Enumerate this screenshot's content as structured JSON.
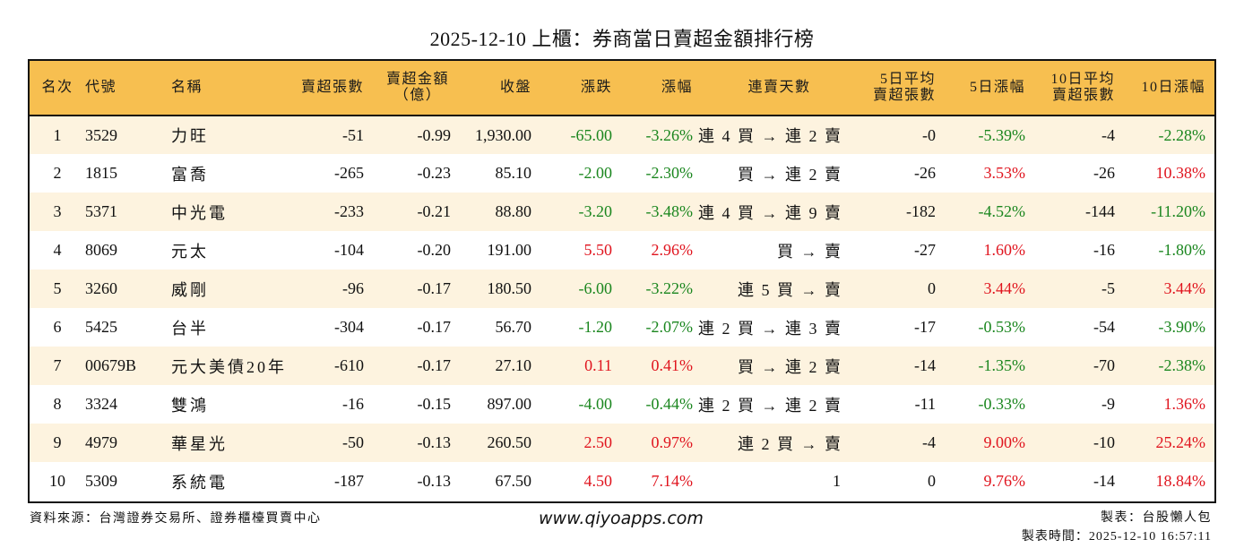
{
  "title": "2025-12-10 上櫃：券商當日賣超金額排行榜",
  "colors": {
    "header_bg": "#F7BF50",
    "row_odd_bg": "#FDF3DF",
    "row_even_bg": "#FFFFFF",
    "up": "#E0141E",
    "down": "#1A861E"
  },
  "table": {
    "headers": {
      "rank": "名次",
      "code": "代號",
      "name": "名稱",
      "sell_shares": "賣超張數",
      "sell_amount_line1": "賣超金額",
      "sell_amount_line2": "（億）",
      "close": "收盤",
      "change": "漲跌",
      "change_pct": "漲幅",
      "streak": "連賣天數",
      "avg5_line1": "5日平均",
      "avg5_line2": "賣超張數",
      "pct5": "5日漲幅",
      "avg10_line1": "10日平均",
      "avg10_line2": "賣超張數",
      "pct10": "10日漲幅"
    },
    "rows": [
      {
        "rank": "1",
        "code": "3529",
        "name": "力旺",
        "sell_shares": "-51",
        "sell_amount": "-0.99",
        "close": "1,930.00",
        "change": "-65.00",
        "change_pct": "-3.26%",
        "streak": "連 4 買 → 連 2 賣",
        "avg5": "-0",
        "pct5": "-5.39%",
        "avg10": "-4",
        "pct10": "-2.28%"
      },
      {
        "rank": "2",
        "code": "1815",
        "name": "富喬",
        "sell_shares": "-265",
        "sell_amount": "-0.23",
        "close": "85.10",
        "change": "-2.00",
        "change_pct": "-2.30%",
        "streak": "買 → 連 2 賣",
        "avg5": "-26",
        "pct5": "3.53%",
        "avg10": "-26",
        "pct10": "10.38%"
      },
      {
        "rank": "3",
        "code": "5371",
        "name": "中光電",
        "sell_shares": "-233",
        "sell_amount": "-0.21",
        "close": "88.80",
        "change": "-3.20",
        "change_pct": "-3.48%",
        "streak": "連 4 買 → 連 9 賣",
        "avg5": "-182",
        "pct5": "-4.52%",
        "avg10": "-144",
        "pct10": "-11.20%"
      },
      {
        "rank": "4",
        "code": "8069",
        "name": "元太",
        "sell_shares": "-104",
        "sell_amount": "-0.20",
        "close": "191.00",
        "change": "5.50",
        "change_pct": "2.96%",
        "streak": "買 → 賣",
        "avg5": "-27",
        "pct5": "1.60%",
        "avg10": "-16",
        "pct10": "-1.80%"
      },
      {
        "rank": "5",
        "code": "3260",
        "name": "威剛",
        "sell_shares": "-96",
        "sell_amount": "-0.17",
        "close": "180.50",
        "change": "-6.00",
        "change_pct": "-3.22%",
        "streak": "連 5 買 → 賣",
        "avg5": "0",
        "pct5": "3.44%",
        "avg10": "-5",
        "pct10": "3.44%"
      },
      {
        "rank": "6",
        "code": "5425",
        "name": "台半",
        "sell_shares": "-304",
        "sell_amount": "-0.17",
        "close": "56.70",
        "change": "-1.20",
        "change_pct": "-2.07%",
        "streak": "連 2 買 → 連 3 賣",
        "avg5": "-17",
        "pct5": "-0.53%",
        "avg10": "-54",
        "pct10": "-3.90%"
      },
      {
        "rank": "7",
        "code": "00679B",
        "name": "元大美債20年",
        "sell_shares": "-610",
        "sell_amount": "-0.17",
        "close": "27.10",
        "change": "0.11",
        "change_pct": "0.41%",
        "streak": "買 → 連 2 賣",
        "avg5": "-14",
        "pct5": "-1.35%",
        "avg10": "-70",
        "pct10": "-2.38%"
      },
      {
        "rank": "8",
        "code": "3324",
        "name": "雙鴻",
        "sell_shares": "-16",
        "sell_amount": "-0.15",
        "close": "897.00",
        "change": "-4.00",
        "change_pct": "-0.44%",
        "streak": "連 2 買 → 連 2 賣",
        "avg5": "-11",
        "pct5": "-0.33%",
        "avg10": "-9",
        "pct10": "1.36%"
      },
      {
        "rank": "9",
        "code": "4979",
        "name": "華星光",
        "sell_shares": "-50",
        "sell_amount": "-0.13",
        "close": "260.50",
        "change": "2.50",
        "change_pct": "0.97%",
        "streak": "連 2 買 → 賣",
        "avg5": "-4",
        "pct5": "9.00%",
        "avg10": "-10",
        "pct10": "25.24%"
      },
      {
        "rank": "10",
        "code": "5309",
        "name": "系統電",
        "sell_shares": "-187",
        "sell_amount": "-0.13",
        "close": "67.50",
        "change": "4.50",
        "change_pct": "7.14%",
        "streak": "1",
        "avg5": "0",
        "pct5": "9.76%",
        "avg10": "-14",
        "pct10": "18.84%"
      }
    ]
  },
  "footer": {
    "source": "資料來源：台灣證券交易所、證券櫃檯買賣中心",
    "site": "www.qiyoapps.com",
    "maker": "製表：台股懶人包",
    "made_time": "製表時間：2025-12-10 16:57:11"
  }
}
